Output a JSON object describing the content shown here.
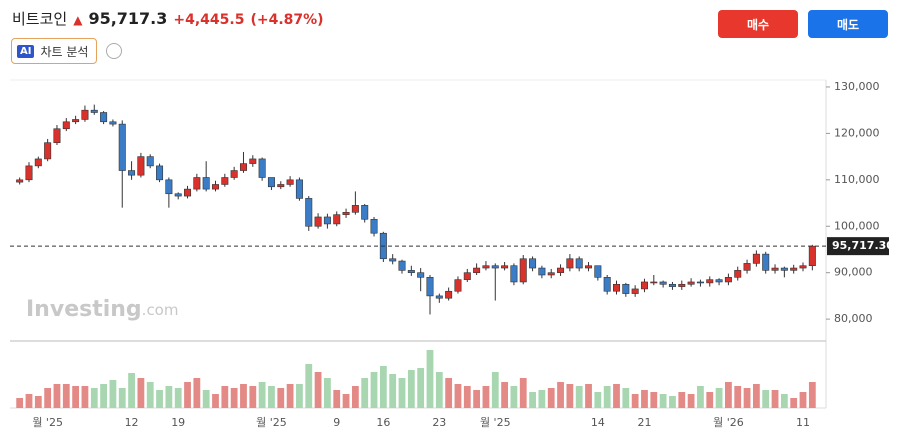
{
  "header": {
    "name": "비트코인",
    "price": "95,717.3",
    "change": "+4,445.5",
    "change_pct": "(+4.87%)",
    "ai_badge": "AI",
    "ai_label": "차트 분석",
    "buy": "매수",
    "sell": "매도",
    "logo": "Investing",
    "logo_suffix": ".com"
  },
  "chart_data": {
    "type": "candlestick",
    "categories": [
      null,
      null,
      null,
      "월 '25",
      null,
      null,
      null,
      null,
      null,
      null,
      null,
      null,
      "12",
      null,
      null,
      null,
      null,
      "19",
      null,
      null,
      null,
      null,
      null,
      null,
      null,
      null,
      null,
      "월 '25",
      null,
      null,
      null,
      null,
      null,
      null,
      "9",
      null,
      null,
      null,
      null,
      "16",
      null,
      null,
      null,
      null,
      null,
      "23",
      null,
      null,
      null,
      null,
      null,
      "월 '25",
      null,
      null,
      null,
      null,
      null,
      null,
      null,
      null,
      null,
      null,
      "14",
      null,
      null,
      null,
      null,
      "21",
      null,
      null,
      null,
      null,
      null,
      null,
      null,
      null,
      "월 '26",
      null,
      null,
      null,
      null,
      null,
      null,
      null,
      "11",
      null
    ],
    "open": [
      109500,
      110000,
      113000,
      114500,
      118000,
      121000,
      122500,
      123000,
      125000,
      124500,
      122500,
      122000,
      112000,
      111000,
      115000,
      113000,
      110000,
      107000,
      106500,
      108000,
      110500,
      108000,
      109000,
      110500,
      112000,
      113500,
      114500,
      110500,
      108500,
      109000,
      110000,
      106000,
      100000,
      102000,
      100500,
      102500,
      103000,
      104500,
      101500,
      98500,
      93000,
      92500,
      90500,
      90000,
      89000,
      85000,
      84500,
      86000,
      88500,
      90000,
      91000,
      91500,
      91000,
      91500,
      88000,
      93000,
      91000,
      89500,
      90000,
      91000,
      93000,
      91000,
      91500,
      89000,
      86000,
      87500,
      85500,
      86500,
      88000,
      88000,
      87500,
      87000,
      87500,
      88000,
      87800,
      88500,
      88000,
      89000,
      90500,
      92000,
      94000,
      90500,
      91000,
      90500,
      91000,
      91500
    ],
    "high": [
      110500,
      113800,
      115000,
      118800,
      121800,
      123300,
      123800,
      126000,
      126200,
      124800,
      123000,
      122800,
      114000,
      115800,
      115500,
      113500,
      110500,
      107300,
      108700,
      111300,
      114000,
      109800,
      111300,
      112800,
      116000,
      115300,
      114800,
      110500,
      109700,
      110800,
      110500,
      106500,
      102800,
      102700,
      103200,
      103800,
      107500,
      104800,
      102000,
      98800,
      94000,
      92800,
      91500,
      91000,
      89500,
      85500,
      86800,
      89200,
      90800,
      92000,
      92500,
      92000,
      92300,
      92000,
      93800,
      93500,
      91500,
      90800,
      91800,
      94000,
      93500,
      92300,
      91500,
      89500,
      88300,
      87800,
      87300,
      88700,
      89500,
      88300,
      88000,
      88300,
      88800,
      88500,
      89200,
      88800,
      89800,
      91300,
      92800,
      94800,
      94500,
      91800,
      91300,
      91700,
      92200,
      96000
    ],
    "low": [
      109000,
      109500,
      112500,
      114000,
      117500,
      120500,
      122000,
      122500,
      124000,
      122000,
      121500,
      104000,
      110000,
      110500,
      112500,
      109500,
      104000,
      105800,
      106000,
      107500,
      107500,
      107500,
      108500,
      110000,
      111500,
      112800,
      109800,
      107800,
      108000,
      108500,
      105500,
      99000,
      99500,
      99500,
      100000,
      101800,
      102500,
      100800,
      97800,
      92300,
      91800,
      89800,
      89300,
      86000,
      81000,
      83500,
      84000,
      85500,
      88000,
      89500,
      90500,
      84000,
      90500,
      87300,
      87500,
      90300,
      88800,
      88800,
      89300,
      90300,
      90300,
      90300,
      88300,
      85300,
      85300,
      84800,
      84800,
      85800,
      87300,
      86800,
      86300,
      86300,
      87000,
      87000,
      87000,
      87300,
      87300,
      88300,
      89800,
      91300,
      89800,
      89800,
      89000,
      89800,
      90300,
      90500
    ],
    "close": [
      110000,
      113000,
      114500,
      118000,
      121000,
      122500,
      123000,
      125000,
      124500,
      122500,
      122000,
      112000,
      111000,
      115000,
      113000,
      110000,
      107000,
      106500,
      108000,
      110500,
      108000,
      109000,
      110500,
      112000,
      113500,
      114500,
      110500,
      108500,
      109000,
      110000,
      106000,
      100000,
      102000,
      100500,
      102500,
      103000,
      104500,
      101500,
      98500,
      93000,
      92500,
      90500,
      90000,
      89000,
      85000,
      84500,
      86000,
      88500,
      90000,
      91000,
      91500,
      91000,
      91500,
      88000,
      93000,
      91000,
      89500,
      90000,
      91000,
      93000,
      91000,
      91500,
      89000,
      86000,
      87500,
      85500,
      86500,
      88000,
      88000,
      87500,
      87000,
      87500,
      88000,
      87800,
      88500,
      88000,
      89000,
      90500,
      92000,
      94000,
      90500,
      91000,
      90500,
      91000,
      91500,
      95717.3
    ],
    "volume": [
      10,
      14,
      12,
      20,
      24,
      24,
      22,
      22,
      20,
      24,
      28,
      20,
      35,
      30,
      26,
      18,
      22,
      20,
      26,
      30,
      18,
      14,
      22,
      20,
      24,
      22,
      26,
      22,
      20,
      24,
      24,
      44,
      36,
      30,
      18,
      14,
      22,
      30,
      36,
      42,
      34,
      30,
      38,
      40,
      58,
      36,
      30,
      24,
      22,
      18,
      22,
      36,
      26,
      22,
      30,
      16,
      18,
      20,
      26,
      24,
      22,
      24,
      16,
      22,
      24,
      20,
      14,
      18,
      16,
      14,
      12,
      16,
      14,
      22,
      16,
      20,
      26,
      22,
      20,
      24,
      18,
      18,
      14,
      10,
      16,
      26
    ],
    "up_color": "#d9312b",
    "down_color": "#3a7cc6",
    "up_volume_color": "#e38a86",
    "down_volume_color": "#a7d6b0",
    "last_price": {
      "value": 95717.3,
      "label": "95,717.30"
    },
    "ylim": [
      75500,
      131500
    ],
    "yticks": [
      {
        "value": 80000,
        "label": "80,000"
      },
      {
        "value": 90000,
        "label": "90,000"
      },
      {
        "value": 100000,
        "label": "100,000"
      },
      {
        "value": 110000,
        "label": "110,000"
      },
      {
        "value": 120000,
        "label": "120,000"
      },
      {
        "value": 130000,
        "label": "130,000"
      }
    ]
  }
}
